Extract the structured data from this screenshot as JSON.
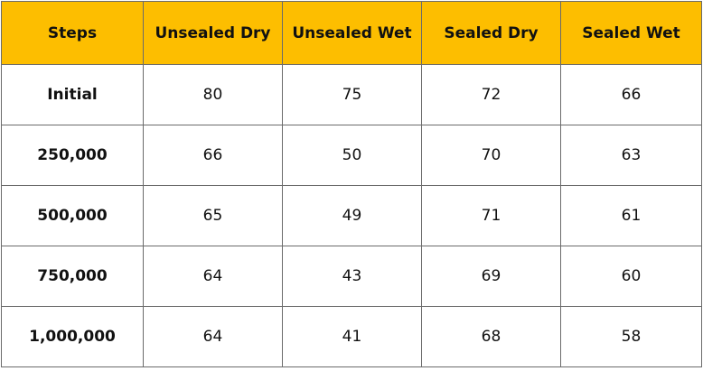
{
  "table": {
    "header": [
      "Steps",
      "Unsealed Dry",
      "Unsealed Wet",
      "Sealed Dry",
      "Sealed Wet"
    ],
    "rows": [
      [
        "Initial",
        80,
        75,
        72,
        66
      ],
      [
        "250,000",
        66,
        50,
        70,
        63
      ],
      [
        "500,000",
        65,
        49,
        71,
        61
      ],
      [
        "750,000",
        64,
        43,
        69,
        60
      ],
      [
        "1,000,000",
        64,
        41,
        68,
        58
      ]
    ]
  }
}
